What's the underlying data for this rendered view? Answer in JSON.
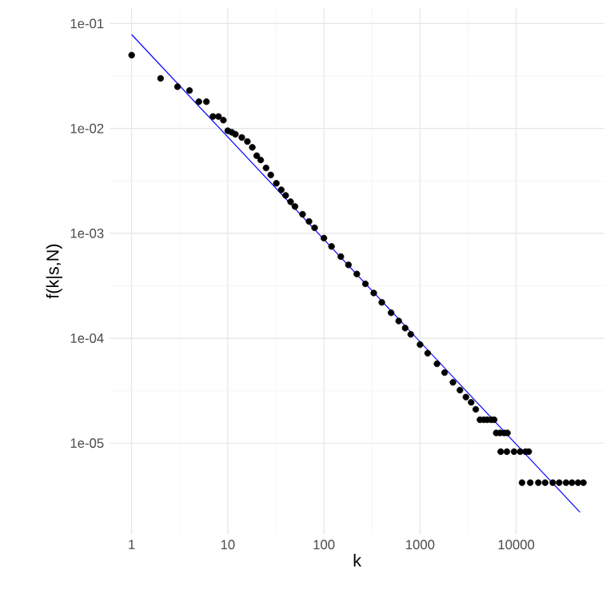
{
  "chart_data": {
    "type": "scatter",
    "xlabel": "k",
    "ylabel": "f(k|s,N)",
    "log": "xy",
    "grid": true,
    "xlim": [
      0.59,
      83000
    ],
    "ylim": [
      1.35e-06,
      0.141
    ],
    "xticks": [
      1,
      10,
      100,
      1000,
      10000
    ],
    "yticks": [
      {
        "value": 0.1,
        "label": "1e-01"
      },
      {
        "value": 0.01,
        "label": "1e-02"
      },
      {
        "value": 0.001,
        "label": "1e-03"
      },
      {
        "value": 0.0001,
        "label": "1e-04"
      },
      {
        "value": 1e-05,
        "label": "1e-05"
      }
    ],
    "series": [
      {
        "color": "#000000",
        "marker": "circle",
        "x": [
          1,
          2,
          3,
          4,
          5,
          6,
          7,
          8,
          9,
          10,
          11,
          12,
          14,
          16,
          18,
          20,
          22,
          25,
          28,
          32,
          36,
          40,
          45,
          50,
          60,
          70,
          80,
          100,
          120,
          150,
          180,
          220,
          270,
          330,
          400,
          500,
          600,
          700,
          800,
          1000,
          1200,
          1500,
          1800,
          2200,
          2600,
          3000,
          3400,
          3800,
          4200,
          4600,
          5000,
          5500,
          5900,
          6200,
          6800,
          7500,
          8100,
          6900,
          8000,
          9500,
          11000,
          12500,
          13500,
          11500,
          14000,
          17000,
          20000,
          24000,
          28000,
          33000,
          38000,
          44000,
          50000
        ],
        "values": [
          0.05,
          0.03,
          0.025,
          0.023,
          0.018,
          0.018,
          0.013,
          0.013,
          0.012,
          0.0095,
          0.0092,
          0.0088,
          0.0082,
          0.0075,
          0.0066,
          0.0055,
          0.005,
          0.0042,
          0.0036,
          0.003,
          0.0026,
          0.0023,
          0.002,
          0.0018,
          0.00152,
          0.0013,
          0.00113,
          0.0009,
          0.00075,
          0.0006,
          0.0005,
          0.00041,
          0.00033,
          0.00027,
          0.00022,
          0.000175,
          0.000146,
          0.000125,
          0.000109,
          8.7e-05,
          7.2e-05,
          5.7e-05,
          4.7e-05,
          3.8e-05,
          3.2e-05,
          2.75e-05,
          2.45e-05,
          2.1e-05,
          1.67e-05,
          1.67e-05,
          1.67e-05,
          1.67e-05,
          1.67e-05,
          1.25e-05,
          1.25e-05,
          1.25e-05,
          1.25e-05,
          8.3e-06,
          8.3e-06,
          8.3e-06,
          8.3e-06,
          8.3e-06,
          8.3e-06,
          4.2e-06,
          4.2e-06,
          4.2e-06,
          4.2e-06,
          4.2e-06,
          4.2e-06,
          4.2e-06,
          4.2e-06,
          4.2e-06,
          4.2e-06
        ]
      },
      {
        "type": "line",
        "color": "#0000ff",
        "line_style": "solid",
        "x": [
          1,
          46000
        ],
        "values": [
          0.0785,
          2.2e-06
        ]
      }
    ]
  }
}
